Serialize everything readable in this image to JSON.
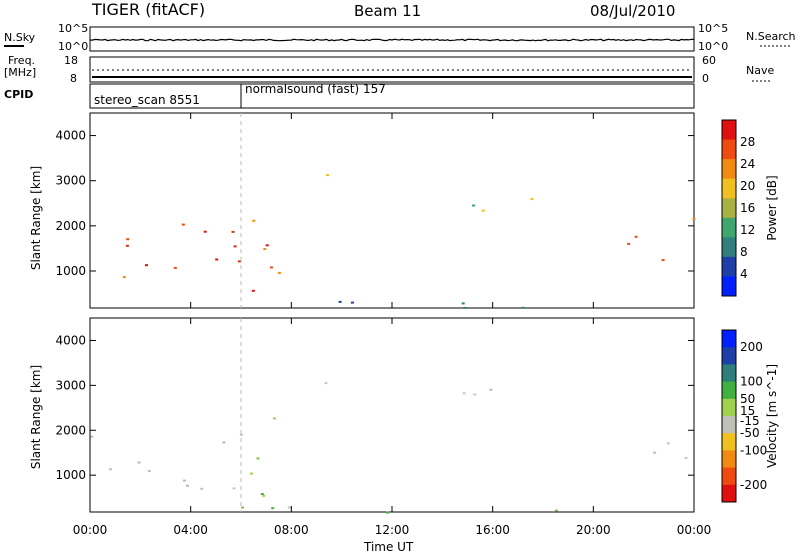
{
  "header": {
    "radar": "TIGER (fitACF)",
    "beam": "Beam 11",
    "date": "08/Jul/2010"
  },
  "status_panels": {
    "nsky_label": "N.Sky",
    "nsky_ticks": [
      "10^5",
      "10^0"
    ],
    "nsearch_label": "N.Search",
    "freq_label_top": "Freq.",
    "freq_label_bottom": "[MHz]",
    "freq_ticks": [
      "18",
      "8"
    ],
    "nave_label": "Nave",
    "nave_ticks": [
      "60",
      "0"
    ],
    "cpid_label": "CPID"
  },
  "modes": [
    {
      "label": "stereo_scan 8551",
      "start_hour": 0,
      "end_hour": 6
    },
    {
      "label": "normalsound (fast) 157",
      "start_hour": 6,
      "end_hour": 24
    }
  ],
  "x_axis": {
    "title": "Time UT",
    "tick_labels": [
      "00:00",
      "04:00",
      "08:00",
      "12:00",
      "16:00",
      "20:00",
      "00:00"
    ],
    "tick_hours": [
      0,
      4,
      8,
      12,
      16,
      20,
      24
    ],
    "range": [
      0,
      24
    ]
  },
  "chart_data": [
    {
      "type": "heatmap",
      "title": "",
      "ylabel": "Slant Range [km]",
      "ylim": [
        180,
        4500
      ],
      "y_ticks": [
        1000,
        2000,
        3000,
        4000
      ],
      "colorbar": {
        "label": "Power [dB]",
        "tick_labels": [
          "28",
          "24",
          "20",
          "16",
          "12",
          "8",
          "4"
        ],
        "tick_values": [
          28,
          24,
          20,
          16,
          12,
          8,
          4
        ],
        "range": [
          0,
          32
        ],
        "colors": [
          "#0020ff",
          "#1e3fa8",
          "#2f7f7a",
          "#3fa66e",
          "#a7b243",
          "#f0c020",
          "#f08a10",
          "#ef4a10",
          "#e01010"
        ]
      },
      "regions": [
        {
          "t0": 0.0,
          "t1": 6.2,
          "r0": 700,
          "r1": 2100,
          "level": "high"
        },
        {
          "t0": 5.2,
          "t1": 8.4,
          "r0": 400,
          "r1": 2500,
          "level": "high"
        },
        {
          "t0": 9.0,
          "t1": 10.0,
          "r0": 2500,
          "r1": 3200,
          "level": "medium"
        },
        {
          "t0": 13.8,
          "t1": 17.8,
          "r0": 2300,
          "r1": 3000,
          "level": "medium"
        },
        {
          "t0": 21.2,
          "t1": 24.0,
          "r0": 1200,
          "r1": 2400,
          "level": "high"
        },
        {
          "t0": 6.0,
          "t1": 24.0,
          "r0": 180,
          "r1": 450,
          "level": "low"
        }
      ]
    },
    {
      "type": "heatmap",
      "title": "",
      "ylabel": "Slant Range [km]",
      "ylim": [
        180,
        4500
      ],
      "y_ticks": [
        1000,
        2000,
        3000,
        4000
      ],
      "colorbar": {
        "label": "Velocity [m s^-1]",
        "tick_labels": [
          "200",
          "100",
          "50",
          "15",
          "-15",
          "-50",
          "-100",
          "-200"
        ],
        "tick_values": [
          200,
          100,
          50,
          15,
          -15,
          -50,
          -100,
          -200
        ],
        "range": [
          -250,
          250
        ],
        "colors": [
          "#e01010",
          "#ef4a10",
          "#f08a10",
          "#f0c020",
          "#c0c0b8",
          "#a0d050",
          "#40b040",
          "#2e7f7a",
          "#1e3fa8",
          "#0020ff"
        ]
      },
      "regions": [
        {
          "t0": 0.0,
          "t1": 6.2,
          "r0": 700,
          "r1": 2100,
          "level": "neutral"
        },
        {
          "t0": 6.0,
          "t1": 8.4,
          "r0": 400,
          "r1": 2400,
          "level": "positive"
        },
        {
          "t0": 9.0,
          "t1": 10.0,
          "r0": 2500,
          "r1": 3200,
          "level": "neutral"
        },
        {
          "t0": 13.8,
          "t1": 17.8,
          "r0": 2300,
          "r1": 3000,
          "level": "neutral"
        },
        {
          "t0": 21.2,
          "t1": 24.0,
          "r0": 1300,
          "r1": 2300,
          "level": "neutral"
        },
        {
          "t0": 6.0,
          "t1": 24.0,
          "r0": 180,
          "r1": 450,
          "level": "positive"
        }
      ]
    }
  ]
}
